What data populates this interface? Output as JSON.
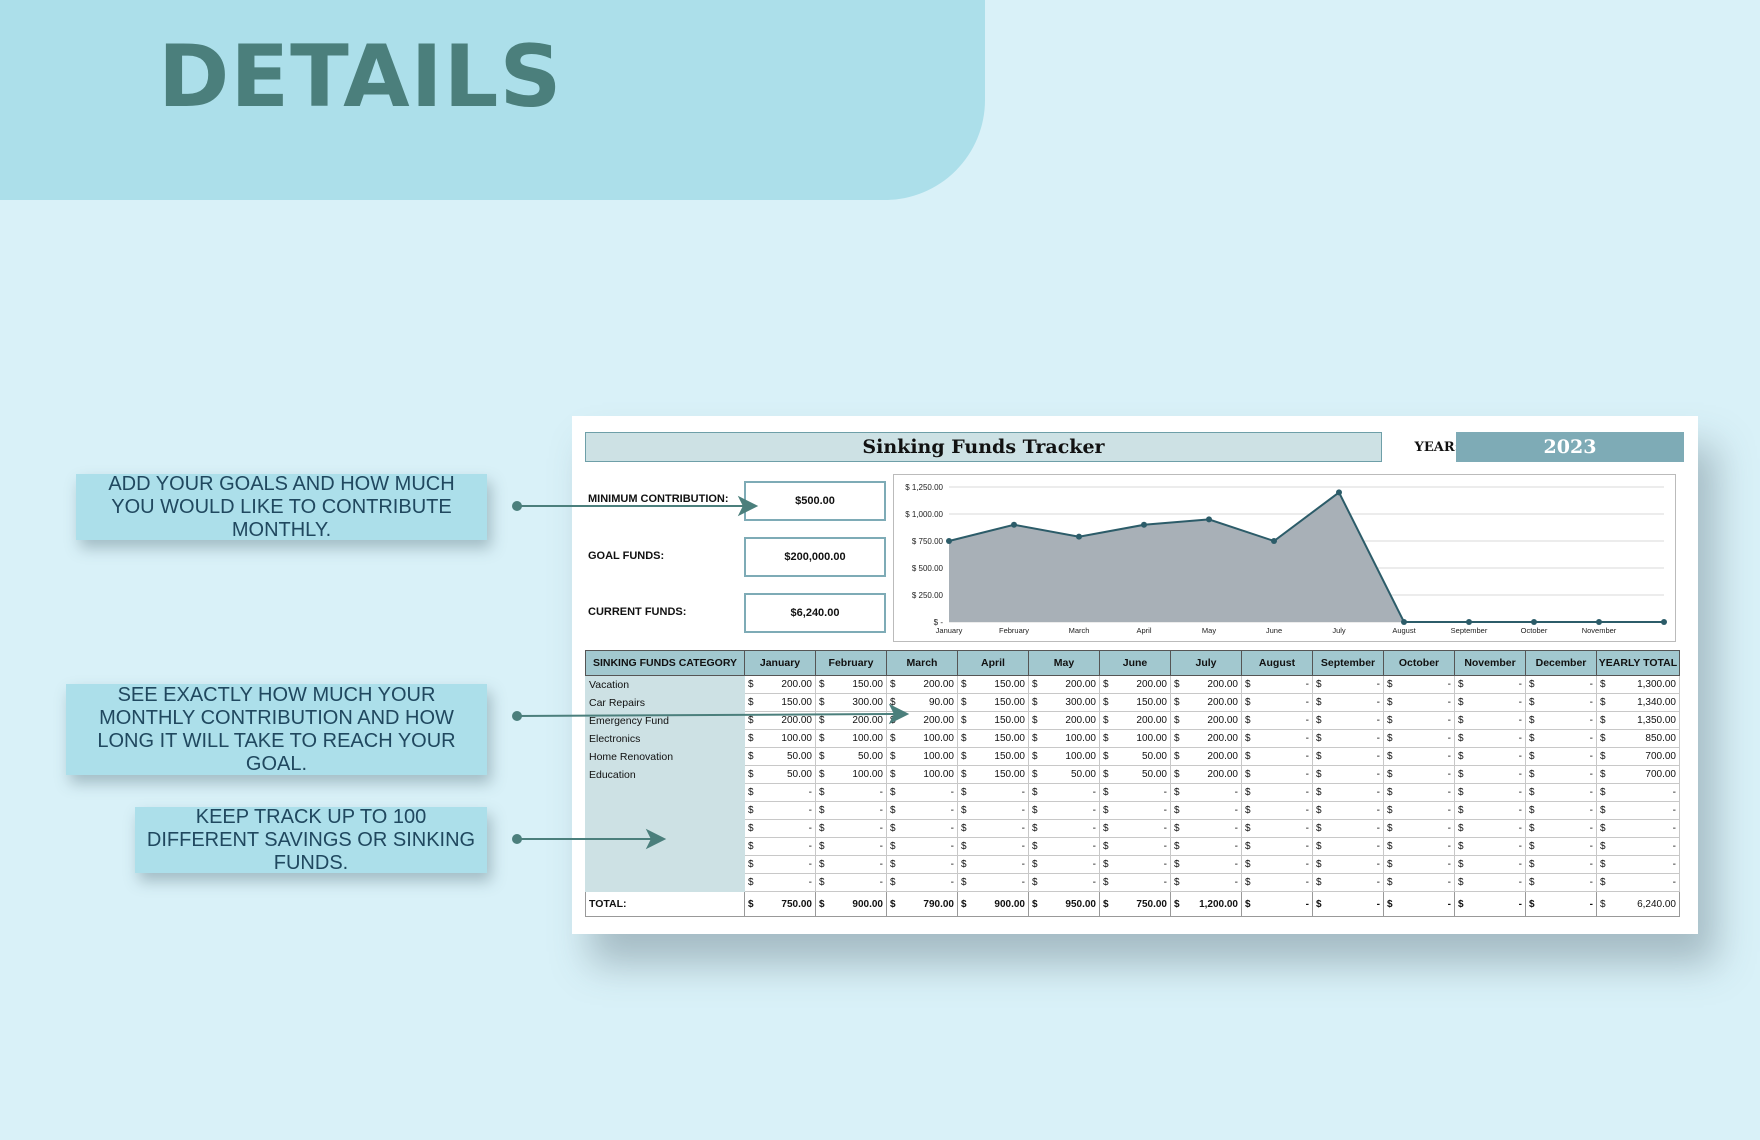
{
  "header": {
    "title": "DETAILS"
  },
  "callouts": [
    "ADD YOUR GOALS AND HOW MUCH YOU WOULD LIKE TO CONTRIBUTE MONTHLY.",
    "SEE EXACTLY HOW MUCH YOUR MONTHLY CONTRIBUTION AND HOW LONG IT WILL TAKE TO REACH YOUR GOAL.",
    "KEEP TRACK UP TO 100 DIFFERENT SAVINGS OR SINKING FUNDS."
  ],
  "sheet": {
    "title": "Sinking Funds Tracker",
    "year_label": "YEAR:",
    "year": "2023",
    "fields": [
      {
        "label": "MINIMUM CONTRIBUTION:",
        "value": "$500.00"
      },
      {
        "label": "GOAL FUNDS:",
        "value": "$200,000.00"
      },
      {
        "label": "CURRENT FUNDS:",
        "value": "$6,240.00"
      }
    ]
  },
  "chart_data": {
    "type": "area",
    "x": [
      "January",
      "February",
      "March",
      "April",
      "May",
      "June",
      "July",
      "August",
      "September",
      "October",
      "November",
      "December"
    ],
    "x_tick_labels": [
      "January",
      "February",
      "March",
      "April",
      "May",
      "June",
      "July",
      "August",
      "September",
      "October",
      "November"
    ],
    "values": [
      750,
      900,
      790,
      900,
      950,
      750,
      1200,
      0,
      0,
      0,
      0,
      0
    ],
    "y_ticks": [
      0,
      250,
      500,
      750,
      1000,
      1250
    ],
    "y_tick_labels": [
      "$ -",
      "$ 250.00",
      "$ 500.00",
      "$ 750.00",
      "$ 1,000.00",
      "$ 1,250.00"
    ],
    "ylim": [
      0,
      1250
    ],
    "grid": true,
    "colors": {
      "fill": "#a8b0b7",
      "line": "#2c5c69"
    }
  },
  "table": {
    "category_header": "SINKING FUNDS CATEGORY",
    "months": [
      "January",
      "February",
      "March",
      "April",
      "May",
      "June",
      "July",
      "August",
      "September",
      "October",
      "November",
      "December"
    ],
    "total_header": "YEARLY TOTAL",
    "currency": "$",
    "empty": "-",
    "rows": [
      {
        "category": "Vacation",
        "values": [
          "200.00",
          "150.00",
          "200.00",
          "150.00",
          "200.00",
          "200.00",
          "200.00",
          "-",
          "-",
          "-",
          "-",
          "-"
        ],
        "total": "1,300.00"
      },
      {
        "category": "Car Repairs",
        "values": [
          "150.00",
          "300.00",
          "90.00",
          "150.00",
          "300.00",
          "150.00",
          "200.00",
          "-",
          "-",
          "-",
          "-",
          "-"
        ],
        "total": "1,340.00"
      },
      {
        "category": "Emergency Fund",
        "values": [
          "200.00",
          "200.00",
          "200.00",
          "150.00",
          "200.00",
          "200.00",
          "200.00",
          "-",
          "-",
          "-",
          "-",
          "-"
        ],
        "total": "1,350.00"
      },
      {
        "category": "Electronics",
        "values": [
          "100.00",
          "100.00",
          "100.00",
          "150.00",
          "100.00",
          "100.00",
          "200.00",
          "-",
          "-",
          "-",
          "-",
          "-"
        ],
        "total": "850.00"
      },
      {
        "category": "Home Renovation",
        "values": [
          "50.00",
          "50.00",
          "100.00",
          "150.00",
          "100.00",
          "50.00",
          "200.00",
          "-",
          "-",
          "-",
          "-",
          "-"
        ],
        "total": "700.00"
      },
      {
        "category": "Education",
        "values": [
          "50.00",
          "100.00",
          "100.00",
          "150.00",
          "50.00",
          "50.00",
          "200.00",
          "-",
          "-",
          "-",
          "-",
          "-"
        ],
        "total": "700.00"
      }
    ],
    "empty_rows": 6,
    "total_label": "TOTAL:",
    "totals": [
      "750.00",
      "900.00",
      "790.00",
      "900.00",
      "950.00",
      "750.00",
      "1,200.00",
      "-",
      "-",
      "-",
      "-",
      "-"
    ],
    "grand_total": "6,240.00"
  }
}
